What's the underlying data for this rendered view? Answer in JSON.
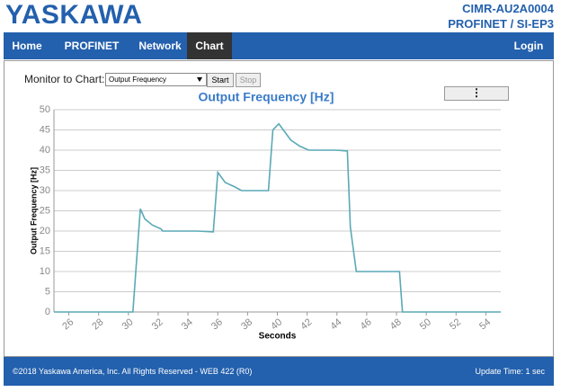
{
  "header": {
    "logo": "YASKAWA",
    "model": "CIMR-AU2A0004",
    "option": "PROFINET / SI-EP3"
  },
  "nav": {
    "items": [
      "Home",
      "PROFINET",
      "Network",
      "Chart"
    ],
    "active": 3,
    "login": "Login"
  },
  "monitor": {
    "label": "Monitor to Chart:",
    "selected": "Output Frequency",
    "start": "Start",
    "stop": "Stop"
  },
  "chart_data": {
    "type": "line",
    "title": "Output Frequency [Hz]",
    "x_label": "Seconds",
    "y_label": "Output Frequency [Hz]",
    "x": [
      25,
      30.3,
      30.8,
      31.1,
      31.6,
      32.2,
      32.3,
      34.6,
      35.7,
      36.0,
      36.5,
      37.1,
      37.6,
      39.4,
      39.7,
      40.1,
      40.5,
      40.9,
      41.5,
      42.1,
      43.9,
      44.7,
      44.9,
      45.3,
      48.2,
      48.4,
      55
    ],
    "values": [
      0,
      0,
      25.5,
      23,
      21.5,
      20.5,
      20,
      20,
      19.8,
      34.5,
      32,
      31,
      30,
      30,
      45,
      46.5,
      44.5,
      42.5,
      41,
      40,
      40,
      39.8,
      21,
      10,
      10,
      0,
      0
    ],
    "color": "#5aa9b5",
    "xlim": [
      25,
      55
    ],
    "ylim": [
      0,
      50
    ],
    "xticks": [
      26,
      28,
      30,
      32,
      34,
      36,
      38,
      40,
      42,
      44,
      46,
      48,
      50,
      52,
      54
    ],
    "yticks": [
      0,
      5,
      10,
      15,
      20,
      25,
      30,
      35,
      40,
      45,
      50
    ],
    "grid": true
  },
  "footer": {
    "copyright": "©2018 Yaskawa America, Inc. All Rights Reserved - WEB 422 (R0)",
    "update": "Update Time: 1 sec"
  }
}
